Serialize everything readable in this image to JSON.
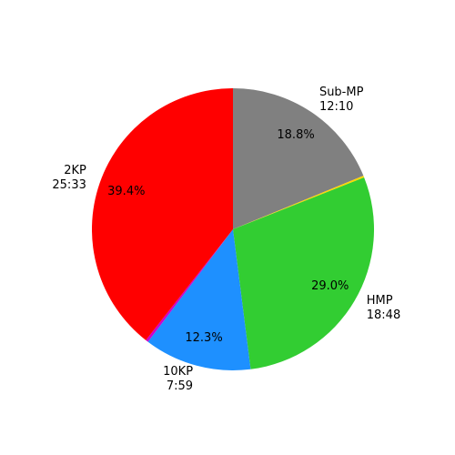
{
  "chart_data": {
    "type": "pie",
    "labels": [
      "Sub-MP\n12:10",
      null,
      "HMP\n18:48",
      "10KP\n7:59",
      null,
      "2KP\n25:33"
    ],
    "values": [
      18.8,
      0.2,
      29.0,
      12.3,
      0.3,
      39.4
    ],
    "value_labels": [
      "18.8%",
      null,
      "29.0%",
      "12.3%",
      null,
      "39.4%"
    ],
    "colors": [
      "#808080",
      "#ffd700",
      "#32cd32",
      "#1e90ff",
      "#cc00cc",
      "#ff0000"
    ],
    "start_angle": 90,
    "counterclock": false
  }
}
